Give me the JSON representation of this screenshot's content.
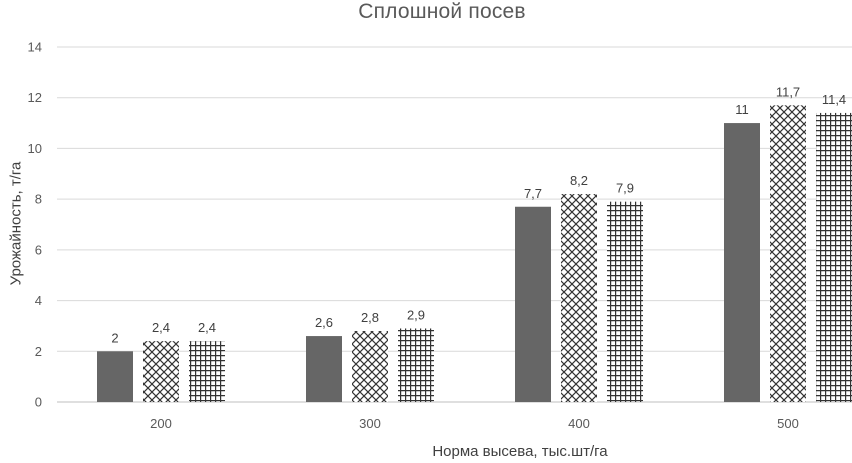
{
  "chart_data": {
    "type": "bar",
    "title": "Сплошной посев",
    "xlabel": "Норма высева, тыс.шт/га",
    "ylabel": "Урожайность, т/га",
    "categories": [
      "200",
      "300",
      "400",
      "500"
    ],
    "series": [
      {
        "values": [
          2,
          2.6,
          7.7,
          11
        ],
        "labels": [
          "2",
          "2,6",
          "7,7",
          "11"
        ],
        "color": "#666666",
        "pattern": "solid"
      },
      {
        "values": [
          2.4,
          2.8,
          8.2,
          11.7
        ],
        "labels": [
          "2,4",
          "2,8",
          "8,2",
          "11,7"
        ],
        "color": "#333333",
        "pattern": "diagonal-cross"
      },
      {
        "values": [
          2.4,
          2.9,
          7.9,
          11.4
        ],
        "labels": [
          "2,4",
          "2,9",
          "7,9",
          "11,4"
        ],
        "color": "#333333",
        "pattern": "grid"
      }
    ],
    "ylim": [
      0,
      14
    ],
    "yticks": [
      "0",
      "2",
      "4",
      "6",
      "8",
      "10",
      "12",
      "14"
    ],
    "grid": true,
    "legend": "none"
  }
}
